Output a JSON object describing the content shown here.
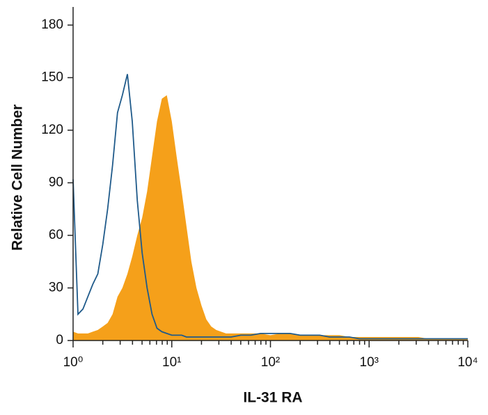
{
  "chart_data": {
    "type": "area-histogram",
    "x_label": "IL-31 RA",
    "y_label": "Relative Cell Number",
    "log_x": true,
    "x_minor_ticks": true,
    "x": [
      1,
      1.12,
      1.26,
      1.41,
      1.58,
      1.78,
      2,
      2.24,
      2.51,
      2.82,
      3.16,
      3.55,
      3.98,
      4.47,
      5.01,
      5.62,
      6.31,
      7.08,
      7.94,
      8.91,
      10,
      11.2,
      12.6,
      14.1,
      15.8,
      17.8,
      20,
      22.4,
      25.1,
      28.2,
      31.6,
      35.5,
      39.8,
      50.1,
      63.1,
      79.4,
      100,
      126,
      158,
      200,
      251,
      316,
      398,
      501,
      631,
      794,
      1000,
      1259,
      1585,
      1995,
      2512,
      3162,
      3981,
      5012,
      6310,
      7943,
      10000
    ],
    "series": [
      {
        "style": "filled",
        "color": "#f5a01a",
        "values": [
          5,
          4,
          4,
          4,
          5,
          6,
          8,
          10,
          15,
          25,
          30,
          38,
          48,
          60,
          70,
          85,
          105,
          125,
          138,
          140,
          125,
          105,
          85,
          65,
          45,
          30,
          20,
          12,
          8,
          6,
          5,
          4,
          4,
          4,
          4,
          4,
          3,
          4,
          4,
          3,
          3,
          3,
          3,
          3,
          2,
          2,
          2,
          2,
          2,
          2,
          2,
          2,
          1,
          1,
          1,
          1,
          1
        ]
      },
      {
        "style": "line",
        "color": "#1f5a8a",
        "values": [
          92,
          15,
          18,
          25,
          32,
          38,
          55,
          75,
          100,
          130,
          140,
          152,
          125,
          80,
          50,
          30,
          15,
          7,
          5,
          4,
          3,
          3,
          3,
          2,
          2,
          2,
          2,
          2,
          2,
          2,
          2,
          2,
          2,
          3,
          3,
          4,
          4,
          4,
          4,
          3,
          3,
          3,
          2,
          2,
          2,
          1,
          1,
          1,
          1,
          1,
          1,
          1,
          1,
          1,
          1,
          1,
          1
        ]
      }
    ],
    "xlim": [
      1,
      10000
    ],
    "xticks": [
      {
        "value": 1,
        "label": "10⁰"
      },
      {
        "value": 10,
        "label": "10¹"
      },
      {
        "value": 100,
        "label": "10²"
      },
      {
        "value": 1000,
        "label": "10³"
      },
      {
        "value": 10000,
        "label": "10⁴"
      }
    ],
    "ylim": [
      0,
      180
    ],
    "yticks": [
      0,
      30,
      60,
      90,
      120,
      150,
      180
    ]
  }
}
